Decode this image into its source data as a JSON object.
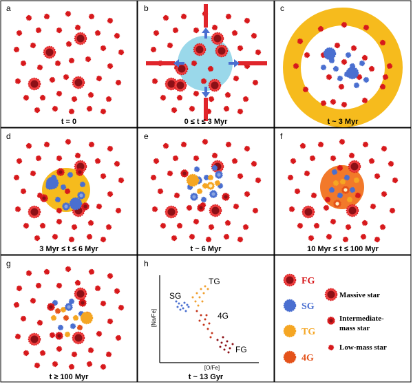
{
  "figure_title": "",
  "colors": {
    "fg": "#d7191c",
    "fg_dark": "#8c1016",
    "fg_ring": "#f04040",
    "sg": "#4a6fd0",
    "sg_light": "#8aa4e0",
    "tg": "#f5a623",
    "fg4": "#e4521a",
    "gas_blue": "#9ad8ea",
    "gas_yellow": "#f6bb1d",
    "gas_orange": "#f2792a",
    "arrow_red": "#e0252b",
    "arrow_blue": "#4a6fd0"
  },
  "panels": [
    {
      "id": "a",
      "letter": "a",
      "time": "t = 0"
    },
    {
      "id": "b",
      "letter": "b",
      "time": "0 ≤ t ≤ 3 Myr"
    },
    {
      "id": "c",
      "letter": "c",
      "time": "t ~ 3 Myr"
    },
    {
      "id": "d",
      "letter": "d",
      "time": "3 Myr ≤ t ≤ 6 Myr"
    },
    {
      "id": "e",
      "letter": "e",
      "time": "t ~ 6 Myr"
    },
    {
      "id": "f",
      "letter": "f",
      "time": "10 Myr ≤ t ≤ 100 Myr"
    },
    {
      "id": "g",
      "letter": "g",
      "time": "t ≥ 100 Myr"
    },
    {
      "id": "h",
      "letter": "h",
      "time": "t ~ 13 Gyr"
    }
  ],
  "abundance_plot": {
    "y_label": "[Na/Fe]",
    "x_label": "[O/Fe]",
    "groups": [
      {
        "name": "SG",
        "label": "SG"
      },
      {
        "name": "TG",
        "label": "TG"
      },
      {
        "name": "4G",
        "label": "4G"
      },
      {
        "name": "FG",
        "label": "FG"
      }
    ]
  },
  "legend": {
    "generations": [
      {
        "key": "fg",
        "label": "FG"
      },
      {
        "key": "sg",
        "label": "SG"
      },
      {
        "key": "tg",
        "label": "TG"
      },
      {
        "key": "4g",
        "label": "4G"
      }
    ],
    "star_types": [
      {
        "key": "massive",
        "label": "Massive star"
      },
      {
        "key": "intermediate",
        "label": "Intermediate-mass star"
      },
      {
        "key": "intermediate_line1",
        "label": "Intermediate-"
      },
      {
        "key": "intermediate_line2",
        "label": "mass star"
      },
      {
        "key": "low",
        "label": "Low-mass star"
      }
    ]
  }
}
